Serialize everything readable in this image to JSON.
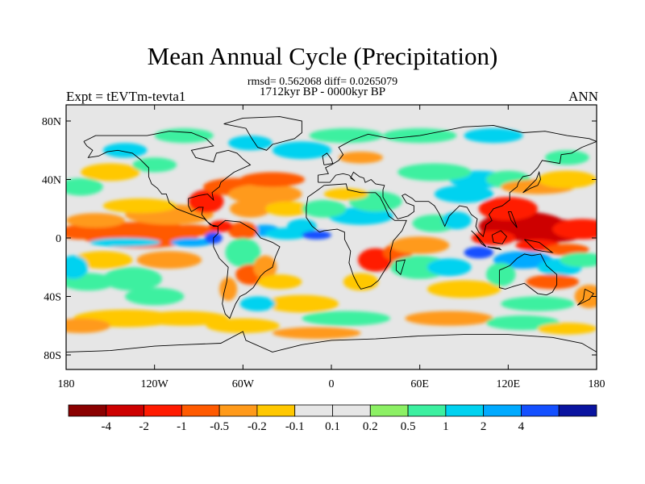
{
  "title": "Mean Annual Cycle (Precipitation)",
  "stats_line": "rmsd= 0.562068 diff= 0.0265079",
  "period_line": "1712kyr BP - 0000kyr BP",
  "experiment_label": "Expt = tEVTm-tevta1",
  "season_label": "ANN",
  "map": {
    "lat_ticks": [
      {
        "lat": 80,
        "label": "80N"
      },
      {
        "lat": 40,
        "label": "40N"
      },
      {
        "lat": 0,
        "label": "0"
      },
      {
        "lat": -40,
        "label": "40S"
      },
      {
        "lat": -80,
        "label": "80S"
      }
    ],
    "lon_ticks": [
      {
        "lon": -180,
        "label": "180"
      },
      {
        "lon": -120,
        "label": "120W"
      },
      {
        "lon": -60,
        "label": "60W"
      },
      {
        "lon": 0,
        "label": "0"
      },
      {
        "lon": 60,
        "label": "60E"
      },
      {
        "lon": 120,
        "label": "120E"
      },
      {
        "lon": 180,
        "label": "180"
      }
    ],
    "background_color": "#e6e6e6",
    "coast_color": "#000000"
  },
  "colorbar": {
    "colors": [
      "#8a0000",
      "#cd0000",
      "#ff1a00",
      "#ff5a00",
      "#ff9a1a",
      "#ffc800",
      "#e6e6e6",
      "#e6e6e6",
      "#8cf064",
      "#3cf0a0",
      "#00d2f0",
      "#00aaff",
      "#1450ff",
      "#0a14a0"
    ],
    "labels": [
      "-4",
      "-2",
      "-1",
      "-0.5",
      "-0.2",
      "-0.1",
      "0.1",
      "0.2",
      "0.5",
      "1",
      "2",
      "4"
    ]
  }
}
